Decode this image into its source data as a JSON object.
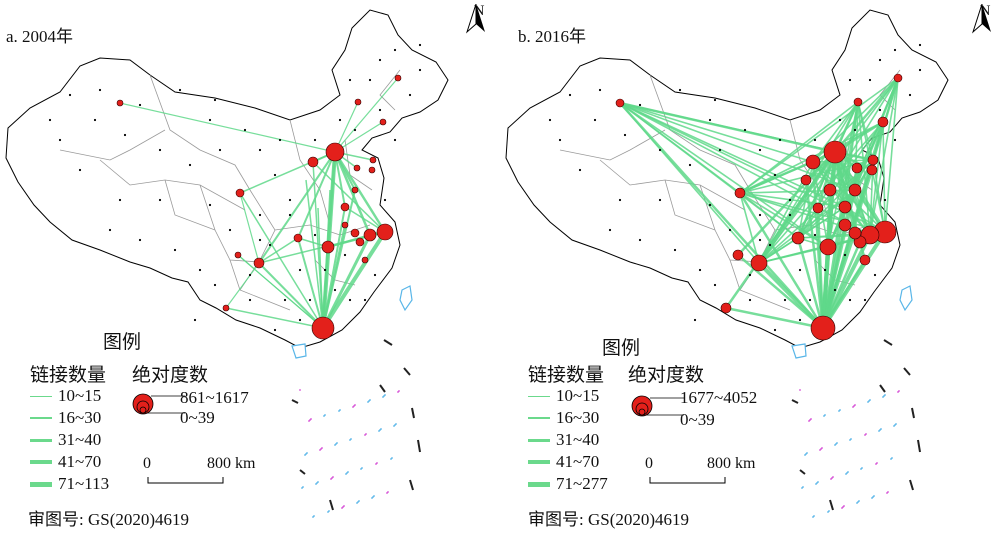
{
  "colors": {
    "link": "#5fd88a",
    "node": "#e3201b",
    "province": "#9a9a9a",
    "outline": "#000000",
    "island_cyan": "#59b6e8",
    "island_pink": "#d64fd6"
  },
  "panels": [
    {
      "title": "a. 2004年",
      "north_label": "N",
      "legend": {
        "title": "图例",
        "links_header": "链接数量",
        "degree_header": "绝对度数",
        "link_classes": [
          "10~15",
          "16~30",
          "31~40",
          "41~70",
          "71~113"
        ],
        "degree_max": "861~1617",
        "degree_min": "0~39"
      },
      "scale": {
        "zero": "0",
        "end": "800 km"
      },
      "review_number": "审图号: GS(2020)4619"
    },
    {
      "title": "b. 2016年",
      "north_label": "N",
      "legend": {
        "title": "图例",
        "links_header": "链接数量",
        "degree_header": "绝对度数",
        "link_classes": [
          "10~15",
          "16~30",
          "31~40",
          "41~70",
          "71~277"
        ],
        "degree_max": "1677~4052",
        "degree_min": "0~39"
      },
      "scale": {
        "zero": "0",
        "end": "800 km"
      },
      "review_number": "审图号: GS(2020)4619"
    }
  ]
}
